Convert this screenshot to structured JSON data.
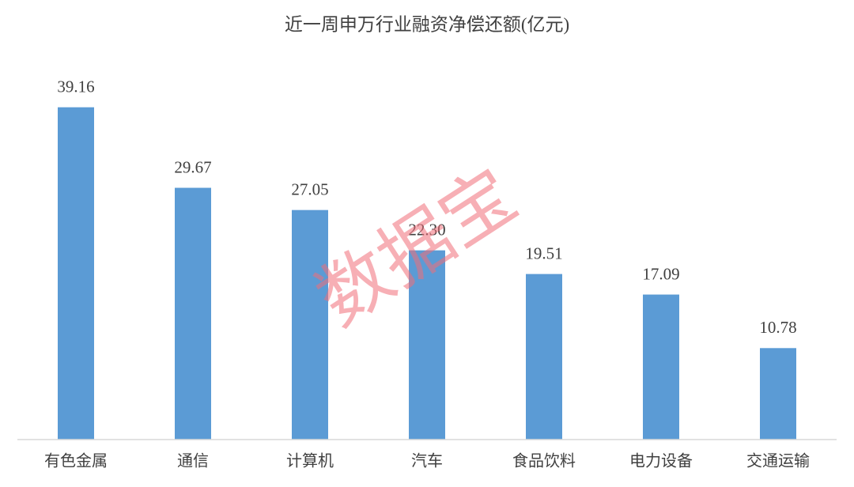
{
  "chart_data": {
    "type": "bar",
    "title": "近一周申万行业融资净偿还额(亿元)",
    "categories": [
      "有色金属",
      "通信",
      "计算机",
      "汽车",
      "食品饮料",
      "电力设备",
      "交通运输"
    ],
    "values": [
      39.16,
      29.67,
      27.05,
      22.3,
      19.51,
      17.09,
      10.78
    ],
    "value_labels": [
      "39.16",
      "29.67",
      "27.05",
      "22.30",
      "19.51",
      "17.09",
      "10.78"
    ],
    "color": "#5b9bd5",
    "ylim": [
      0,
      45
    ],
    "grid": false,
    "watermark": "数据宝"
  }
}
